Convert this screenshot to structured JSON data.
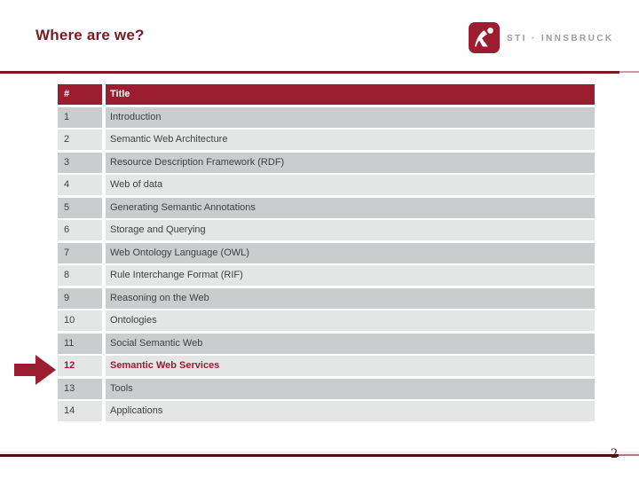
{
  "slide": {
    "title": "Where are we?",
    "page_number": "2"
  },
  "logo": {
    "brand": "STI · INNSBRUCK",
    "icon": "sti-running-figure"
  },
  "appearance": {
    "accent_crimson": "#9c1c30",
    "title_maroon": "#7b1a21",
    "footer_rule_dark": "#4f1013",
    "row_shade_dark": "#c9cdce",
    "row_shade_light": "#e4e6e6",
    "logo_text_gray": "#a19c99"
  },
  "table": {
    "headers": [
      "#",
      "Title"
    ],
    "rows": [
      {
        "num": "1",
        "title": "Introduction"
      },
      {
        "num": "2",
        "title": "Semantic Web Architecture"
      },
      {
        "num": "3",
        "title": "Resource Description Framework (RDF)"
      },
      {
        "num": "4",
        "title": "Web of data"
      },
      {
        "num": "5",
        "title": "Generating Semantic Annotations"
      },
      {
        "num": "6",
        "title": "Storage and Querying"
      },
      {
        "num": "7",
        "title": "Web Ontology Language (OWL)"
      },
      {
        "num": "8",
        "title": "Rule Interchange Format (RIF)"
      },
      {
        "num": "9",
        "title": "Reasoning on the Web"
      },
      {
        "num": "10",
        "title": "Ontologies"
      },
      {
        "num": "11",
        "title": "Social Semantic Web"
      },
      {
        "num": "12",
        "title": "Semantic Web Services",
        "current": true
      },
      {
        "num": "13",
        "title": "Tools"
      },
      {
        "num": "14",
        "title": "Applications"
      }
    ]
  }
}
